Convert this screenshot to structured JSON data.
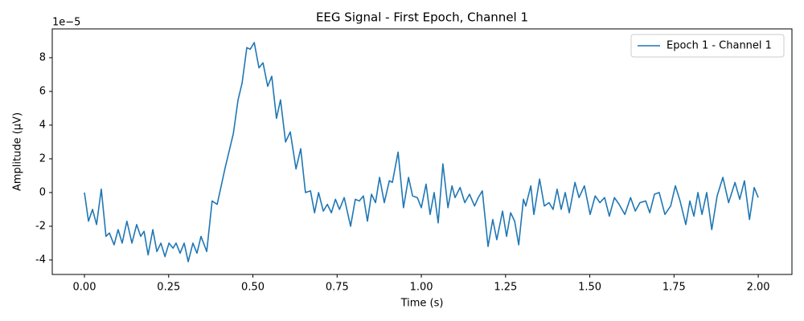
{
  "chart_data": {
    "type": "line",
    "title": "EEG Signal - First Epoch, Channel 1",
    "xlabel": "Time (s)",
    "ylabel": "Amplitude (µV)",
    "y_offset_label": "1e−5",
    "legend_position": "upper right",
    "grid": false,
    "xlim": [
      -0.0955,
      2.1
    ],
    "ylim": [
      -4.86,
      9.71
    ],
    "xticks": [
      {
        "value": 0,
        "label": "0.00"
      },
      {
        "value": 0.25,
        "label": "0.25"
      },
      {
        "value": 0.5,
        "label": "0.50"
      },
      {
        "value": 0.75,
        "label": "0.75"
      },
      {
        "value": 1,
        "label": "1.00"
      },
      {
        "value": 1.25,
        "label": "1.25"
      },
      {
        "value": 1.5,
        "label": "1.50"
      },
      {
        "value": 1.75,
        "label": "1.75"
      },
      {
        "value": 2,
        "label": "2.00"
      }
    ],
    "yticks": [
      -4,
      -2,
      0,
      2,
      4,
      6,
      8
    ],
    "x": [
      0,
      0.012,
      0.024,
      0.036,
      0.05,
      0.064,
      0.074,
      0.088,
      0.1,
      0.112,
      0.126,
      0.141,
      0.155,
      0.167,
      0.177,
      0.189,
      0.203,
      0.215,
      0.227,
      0.239,
      0.251,
      0.263,
      0.272,
      0.284,
      0.296,
      0.308,
      0.322,
      0.334,
      0.346,
      0.363,
      0.379,
      0.394,
      0.418,
      0.442,
      0.456,
      0.468,
      0.482,
      0.492,
      0.504,
      0.518,
      0.53,
      0.544,
      0.556,
      0.57,
      0.582,
      0.597,
      0.611,
      0.628,
      0.642,
      0.656,
      0.671,
      0.683,
      0.695,
      0.709,
      0.721,
      0.733,
      0.745,
      0.757,
      0.771,
      0.79,
      0.804,
      0.816,
      0.828,
      0.84,
      0.852,
      0.864,
      0.876,
      0.89,
      0.905,
      0.914,
      0.931,
      0.947,
      0.962,
      0.974,
      0.988,
      1.0,
      1.014,
      1.026,
      1.038,
      1.05,
      1.064,
      1.079,
      1.091,
      1.1,
      1.115,
      1.129,
      1.143,
      1.158,
      1.169,
      1.181,
      1.198,
      1.212,
      1.224,
      1.241,
      1.253,
      1.265,
      1.277,
      1.289,
      1.303,
      1.31,
      1.325,
      1.334,
      1.351,
      1.365,
      1.379,
      1.391,
      1.403,
      1.415,
      1.427,
      1.439,
      1.456,
      1.468,
      1.484,
      1.501,
      1.516,
      1.53,
      1.544,
      1.558,
      1.573,
      1.587,
      1.604,
      1.621,
      1.635,
      1.649,
      1.666,
      1.678,
      1.692,
      1.706,
      1.723,
      1.74,
      1.754,
      1.768,
      1.785,
      1.797,
      1.809,
      1.821,
      1.833,
      1.847,
      1.862,
      1.878,
      1.895,
      1.912,
      1.931,
      1.945,
      1.959,
      1.974,
      1.988,
      2.0
    ],
    "series": [
      {
        "name": "Epoch 1 - Channel 1",
        "color": "#1f77b4",
        "values": [
          0,
          -1.7,
          -1.0,
          -1.9,
          0.2,
          -2.6,
          -2.4,
          -3.1,
          -2.2,
          -3.0,
          -1.7,
          -3.0,
          -1.9,
          -2.6,
          -2.3,
          -3.7,
          -2.2,
          -3.5,
          -3.0,
          -3.8,
          -3.0,
          -3.3,
          -3.0,
          -3.6,
          -3.0,
          -4.1,
          -3.0,
          -3.6,
          -2.6,
          -3.5,
          -0.5,
          -0.7,
          1.5,
          3.5,
          5.5,
          6.5,
          8.6,
          8.5,
          8.9,
          7.4,
          7.7,
          6.3,
          6.9,
          4.4,
          5.5,
          3.0,
          3.6,
          1.4,
          2.6,
          0.0,
          0.1,
          -1.2,
          0.0,
          -1.1,
          -0.7,
          -1.2,
          -0.4,
          -1.0,
          -0.3,
          -2.0,
          -0.4,
          -0.5,
          -0.2,
          -1.7,
          -0.1,
          -0.6,
          0.9,
          -0.6,
          0.7,
          0.6,
          2.4,
          -0.9,
          0.9,
          -0.2,
          -0.3,
          -0.9,
          0.5,
          -1.3,
          0.0,
          -1.8,
          1.7,
          -0.9,
          0.4,
          -0.3,
          0.3,
          -0.6,
          -0.1,
          -0.8,
          -0.3,
          0.1,
          -3.2,
          -1.6,
          -2.8,
          -1.1,
          -2.6,
          -1.2,
          -1.7,
          -3.1,
          -0.4,
          -0.8,
          0.4,
          -1.3,
          0.8,
          -0.8,
          -0.6,
          -1.0,
          0.2,
          -1.0,
          0.0,
          -1.2,
          0.6,
          -0.3,
          0.4,
          -1.3,
          -0.2,
          -0.6,
          -0.3,
          -1.4,
          -0.3,
          -0.7,
          -1.3,
          -0.3,
          -1.1,
          -0.6,
          -0.5,
          -1.2,
          -0.1,
          0.0,
          -1.3,
          -0.8,
          0.4,
          -0.5,
          -1.9,
          -0.5,
          -1.4,
          0.0,
          -1.3,
          0.0,
          -2.2,
          -0.2,
          0.9,
          -0.6,
          0.6,
          -0.4,
          0.7,
          -1.6,
          0.3,
          -0.3
        ]
      }
    ]
  }
}
